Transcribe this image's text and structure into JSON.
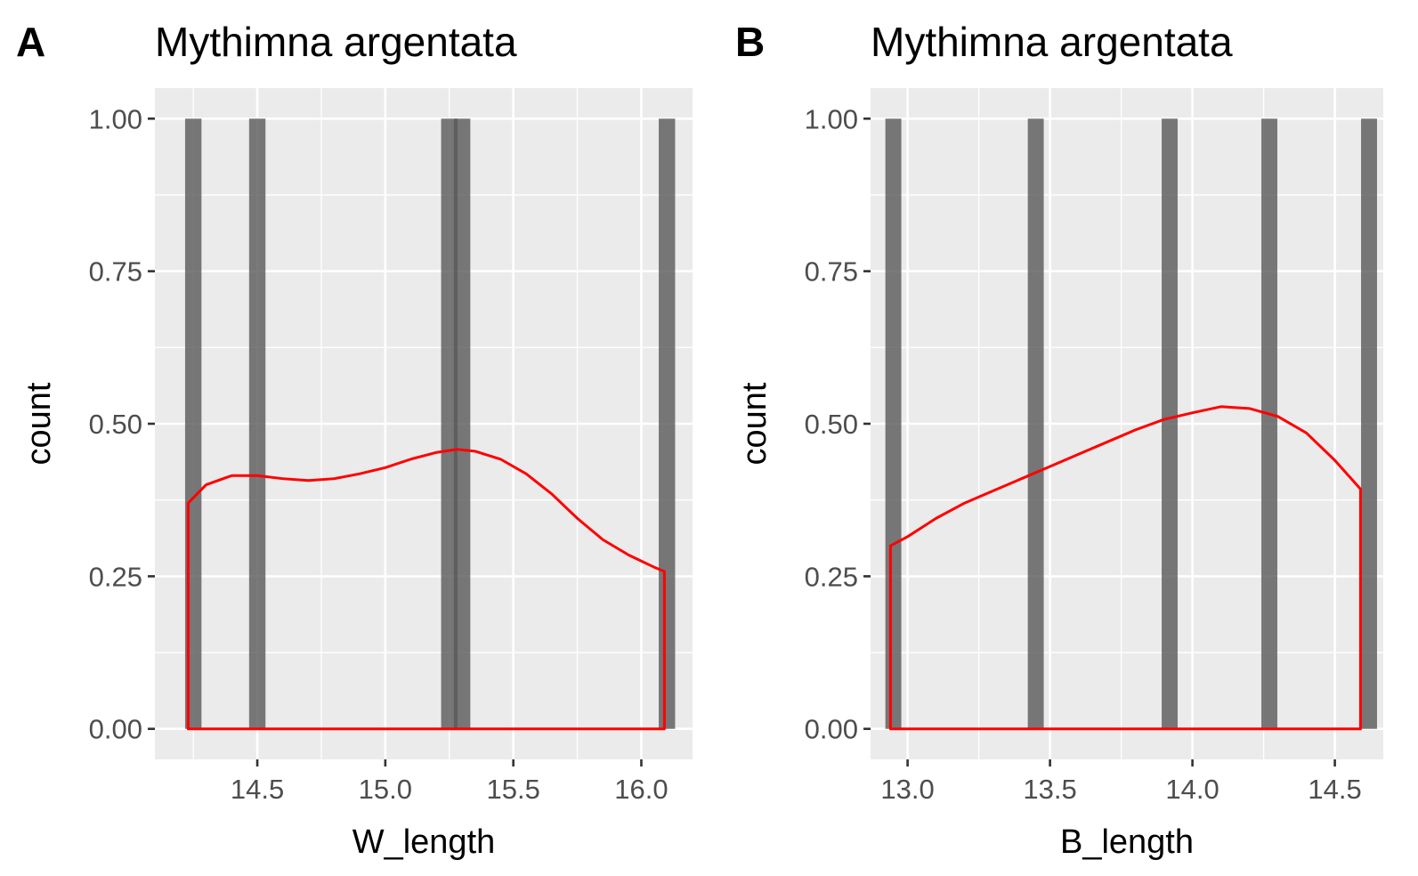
{
  "chart_data": [
    {
      "type": "bar",
      "tag": "A",
      "title": "Mythimna argentata",
      "xlabel": "W_length",
      "ylabel": "count",
      "xlim": [
        14.1,
        16.2
      ],
      "ylim": [
        -0.05,
        1.05
      ],
      "x_ticks": [
        14.5,
        15.0,
        15.5,
        16.0
      ],
      "x_tick_labels": [
        "14.5",
        "15.0",
        "15.5",
        "16.0"
      ],
      "y_ticks": [
        0,
        0.25,
        0.5,
        0.75,
        1.0
      ],
      "y_tick_labels": [
        "0.00",
        "0.25",
        "0.50",
        "0.75",
        "1.00"
      ],
      "bin_width": 0.064,
      "bars": [
        {
          "x": 14.25,
          "count": 1
        },
        {
          "x": 14.5,
          "count": 1
        },
        {
          "x": 15.25,
          "count": 1
        },
        {
          "x": 15.3,
          "count": 1
        },
        {
          "x": 16.1,
          "count": 1
        }
      ],
      "density_color": "#ff0000",
      "density": [
        [
          14.23,
          0.37
        ],
        [
          14.3,
          0.4
        ],
        [
          14.4,
          0.415
        ],
        [
          14.5,
          0.415
        ],
        [
          14.6,
          0.41
        ],
        [
          14.7,
          0.407
        ],
        [
          14.8,
          0.41
        ],
        [
          14.9,
          0.418
        ],
        [
          15.0,
          0.428
        ],
        [
          15.1,
          0.442
        ],
        [
          15.2,
          0.453
        ],
        [
          15.28,
          0.458
        ],
        [
          15.35,
          0.455
        ],
        [
          15.45,
          0.442
        ],
        [
          15.55,
          0.418
        ],
        [
          15.65,
          0.385
        ],
        [
          15.75,
          0.345
        ],
        [
          15.85,
          0.31
        ],
        [
          15.95,
          0.285
        ],
        [
          16.05,
          0.265
        ],
        [
          16.09,
          0.258
        ]
      ]
    },
    {
      "type": "bar",
      "tag": "B",
      "title": "Mythimna argentata",
      "xlabel": "B_length",
      "ylabel": "count",
      "xlim": [
        12.87,
        14.67
      ],
      "ylim": [
        -0.05,
        1.05
      ],
      "x_ticks": [
        13.0,
        13.5,
        14.0,
        14.5
      ],
      "x_tick_labels": [
        "13.0",
        "13.5",
        "14.0",
        "14.5"
      ],
      "y_ticks": [
        0,
        0.25,
        0.5,
        0.75,
        1.0
      ],
      "y_tick_labels": [
        "0.00",
        "0.25",
        "0.50",
        "0.75",
        "1.00"
      ],
      "bin_width": 0.056,
      "bars": [
        {
          "x": 12.95,
          "count": 1
        },
        {
          "x": 13.45,
          "count": 1
        },
        {
          "x": 13.92,
          "count": 1
        },
        {
          "x": 14.27,
          "count": 1
        },
        {
          "x": 14.62,
          "count": 1
        }
      ],
      "density_color": "#ff0000",
      "density": [
        [
          12.94,
          0.3
        ],
        [
          13.0,
          0.315
        ],
        [
          13.1,
          0.345
        ],
        [
          13.2,
          0.37
        ],
        [
          13.3,
          0.39
        ],
        [
          13.4,
          0.41
        ],
        [
          13.5,
          0.43
        ],
        [
          13.6,
          0.45
        ],
        [
          13.7,
          0.47
        ],
        [
          13.8,
          0.49
        ],
        [
          13.9,
          0.507
        ],
        [
          14.0,
          0.518
        ],
        [
          14.1,
          0.528
        ],
        [
          14.2,
          0.525
        ],
        [
          14.3,
          0.512
        ],
        [
          14.4,
          0.485
        ],
        [
          14.5,
          0.44
        ],
        [
          14.59,
          0.393
        ]
      ]
    }
  ]
}
